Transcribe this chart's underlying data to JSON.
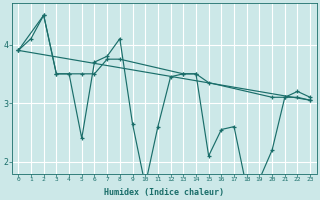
{
  "xlabel": "Humidex (Indice chaleur)",
  "bg_color": "#cce8e8",
  "grid_color": "#ffffff",
  "line_color": "#1a6e6a",
  "series": [
    {
      "x": [
        0,
        1,
        2,
        3,
        4,
        5,
        6,
        7,
        8,
        9,
        10,
        11,
        12,
        13,
        14,
        15,
        16,
        17,
        18,
        19,
        20,
        21,
        22,
        23
      ],
      "y": [
        3.9,
        4.1,
        4.5,
        3.5,
        3.5,
        2.4,
        3.7,
        3.8,
        4.1,
        2.65,
        1.6,
        2.6,
        3.45,
        3.5,
        3.5,
        2.1,
        2.55,
        2.6,
        1.55,
        1.7,
        2.2,
        3.1,
        3.2,
        3.1
      ]
    },
    {
      "x": [
        0,
        2,
        3,
        4,
        5,
        6,
        7,
        8,
        13,
        14,
        15,
        20,
        21,
        22,
        23
      ],
      "y": [
        3.9,
        4.5,
        3.5,
        3.5,
        3.5,
        3.5,
        3.75,
        3.75,
        3.5,
        3.5,
        3.35,
        3.1,
        3.1,
        3.1,
        3.05
      ]
    },
    {
      "x": [
        0,
        23
      ],
      "y": [
        3.9,
        3.05
      ]
    }
  ],
  "ylim": [
    1.8,
    4.7
  ],
  "xlim": [
    -0.5,
    23.5
  ],
  "yticks": [
    2,
    3,
    4
  ],
  "xticks": [
    0,
    1,
    2,
    3,
    4,
    5,
    6,
    7,
    8,
    9,
    10,
    11,
    12,
    13,
    14,
    15,
    16,
    17,
    18,
    19,
    20,
    21,
    22,
    23
  ],
  "xlabel_fontsize": 6,
  "ytick_fontsize": 6,
  "xtick_fontsize": 4.5
}
